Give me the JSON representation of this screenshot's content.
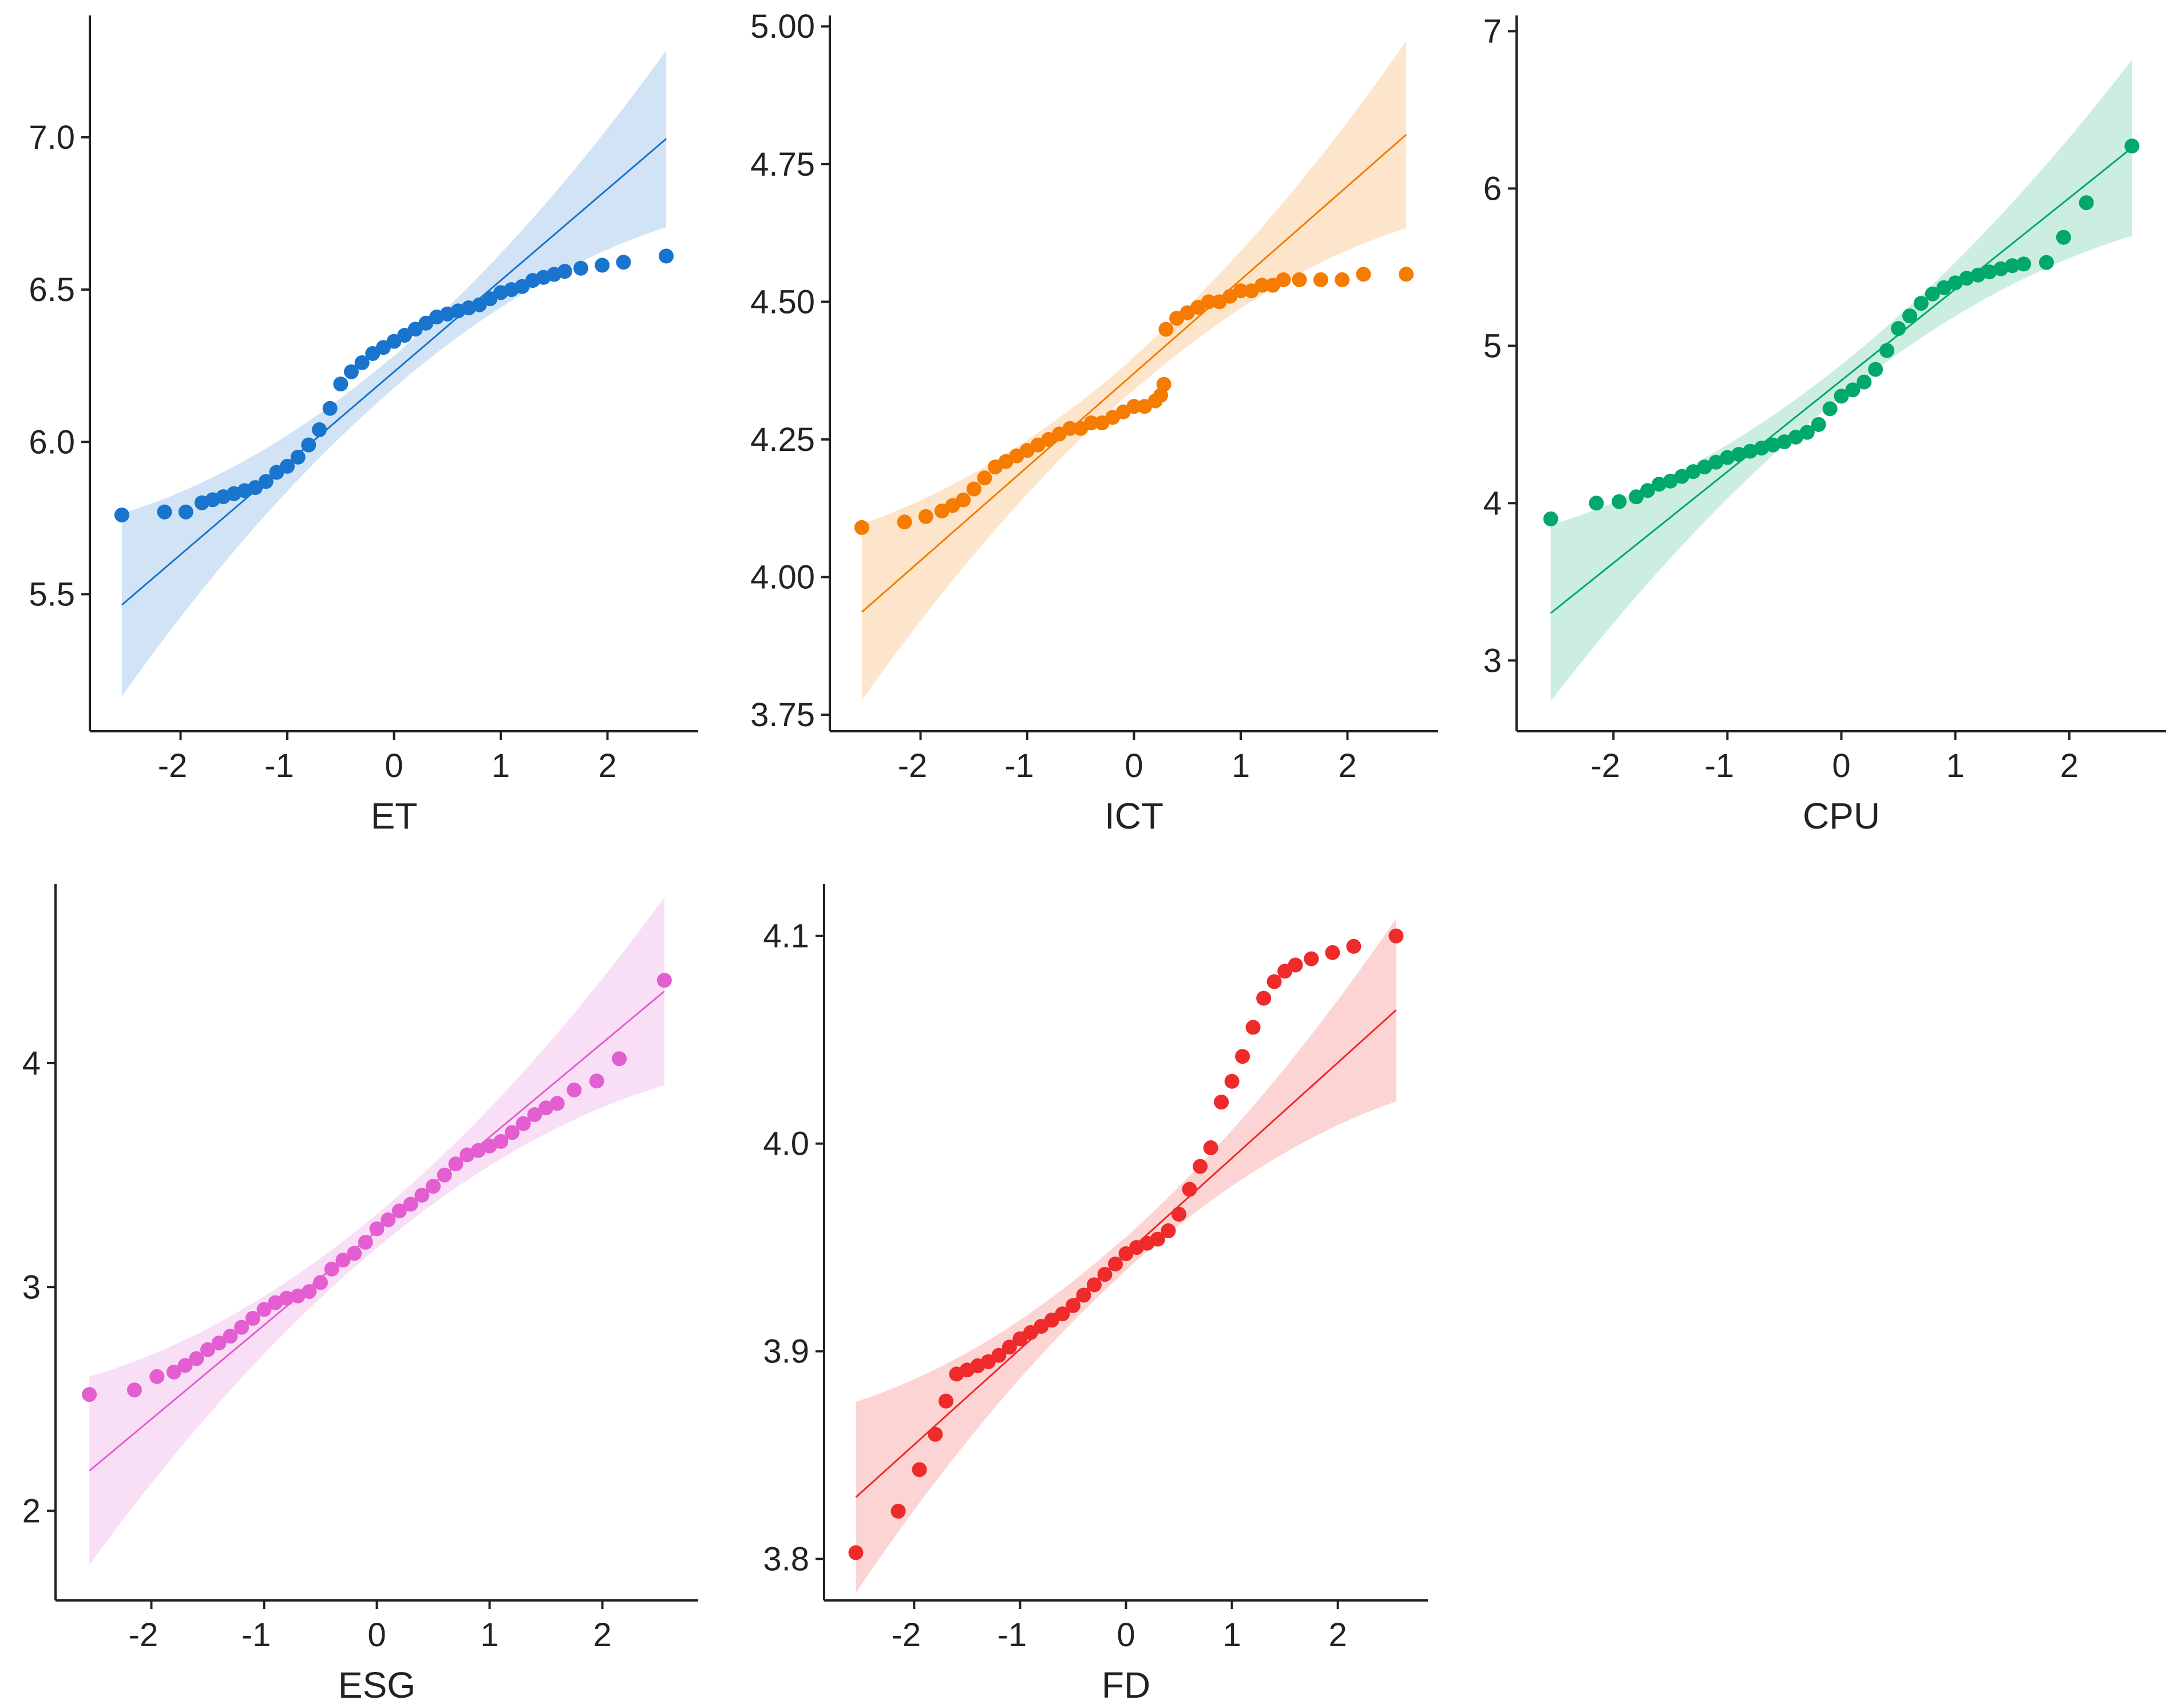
{
  "chart_data": [
    {
      "type": "scatter",
      "subtype": "qq-plot",
      "xlabel": "ET",
      "ylabel": "",
      "color": "#1874cd",
      "xlim": [
        -2.85,
        2.85
      ],
      "ylim": [
        5.05,
        7.4
      ],
      "xticks": [
        -2,
        -1,
        0,
        1,
        2
      ],
      "yticks": [
        5.5,
        6.0,
        6.5,
        7.0
      ],
      "ytick_labels": [
        "5.5",
        "6.0",
        "6.5",
        "7.0"
      ],
      "line": {
        "slope": 0.3,
        "intercept": 6.23
      },
      "band": {
        "half_low": 0.3,
        "half_high": 0.29
      },
      "points": [
        [
          -2.55,
          5.76
        ],
        [
          -2.15,
          5.77
        ],
        [
          -1.95,
          5.77
        ],
        [
          -1.8,
          5.8
        ],
        [
          -1.7,
          5.81
        ],
        [
          -1.6,
          5.82
        ],
        [
          -1.5,
          5.83
        ],
        [
          -1.4,
          5.84
        ],
        [
          -1.3,
          5.85
        ],
        [
          -1.2,
          5.87
        ],
        [
          -1.1,
          5.9
        ],
        [
          -1.0,
          5.92
        ],
        [
          -0.9,
          5.95
        ],
        [
          -0.8,
          5.99
        ],
        [
          -0.7,
          6.04
        ],
        [
          -0.6,
          6.11
        ],
        [
          -0.5,
          6.19
        ],
        [
          -0.4,
          6.23
        ],
        [
          -0.3,
          6.26
        ],
        [
          -0.2,
          6.29
        ],
        [
          -0.1,
          6.31
        ],
        [
          0.0,
          6.33
        ],
        [
          0.1,
          6.35
        ],
        [
          0.2,
          6.37
        ],
        [
          0.3,
          6.39
        ],
        [
          0.4,
          6.41
        ],
        [
          0.5,
          6.42
        ],
        [
          0.6,
          6.43
        ],
        [
          0.7,
          6.44
        ],
        [
          0.8,
          6.45
        ],
        [
          0.9,
          6.47
        ],
        [
          1.0,
          6.49
        ],
        [
          1.1,
          6.5
        ],
        [
          1.2,
          6.51
        ],
        [
          1.3,
          6.53
        ],
        [
          1.4,
          6.54
        ],
        [
          1.5,
          6.55
        ],
        [
          1.6,
          6.56
        ],
        [
          1.75,
          6.57
        ],
        [
          1.95,
          6.58
        ],
        [
          2.15,
          6.59
        ],
        [
          2.55,
          6.61
        ]
      ]
    },
    {
      "type": "scatter",
      "subtype": "qq-plot",
      "xlabel": "ICT",
      "ylabel": "",
      "color": "#f57c00",
      "xlim": [
        -2.85,
        2.85
      ],
      "ylim": [
        3.72,
        5.02
      ],
      "xticks": [
        -2,
        -1,
        0,
        1,
        2
      ],
      "yticks": [
        3.75,
        4.0,
        4.25,
        4.5,
        4.75,
        5.0
      ],
      "ytick_labels": [
        "3.75",
        "4.00",
        "4.25",
        "4.50",
        "4.75",
        "5.00"
      ],
      "line": {
        "slope": 0.17,
        "intercept": 4.37
      },
      "band": {
        "half_low": 0.16,
        "half_high": 0.17
      },
      "points": [
        [
          -2.55,
          4.09
        ],
        [
          -2.15,
          4.1
        ],
        [
          -1.95,
          4.11
        ],
        [
          -1.8,
          4.12
        ],
        [
          -1.7,
          4.13
        ],
        [
          -1.6,
          4.14
        ],
        [
          -1.5,
          4.16
        ],
        [
          -1.4,
          4.18
        ],
        [
          -1.3,
          4.2
        ],
        [
          -1.2,
          4.21
        ],
        [
          -1.1,
          4.22
        ],
        [
          -1.0,
          4.23
        ],
        [
          -0.9,
          4.24
        ],
        [
          -0.8,
          4.25
        ],
        [
          -0.7,
          4.26
        ],
        [
          -0.6,
          4.27
        ],
        [
          -0.5,
          4.27
        ],
        [
          -0.4,
          4.28
        ],
        [
          -0.3,
          4.28
        ],
        [
          -0.2,
          4.29
        ],
        [
          -0.1,
          4.3
        ],
        [
          0.0,
          4.31
        ],
        [
          0.1,
          4.31
        ],
        [
          0.2,
          4.32
        ],
        [
          0.25,
          4.33
        ],
        [
          0.28,
          4.35
        ],
        [
          0.3,
          4.45
        ],
        [
          0.4,
          4.47
        ],
        [
          0.5,
          4.48
        ],
        [
          0.6,
          4.49
        ],
        [
          0.7,
          4.5
        ],
        [
          0.8,
          4.5
        ],
        [
          0.9,
          4.51
        ],
        [
          1.0,
          4.52
        ],
        [
          1.1,
          4.52
        ],
        [
          1.2,
          4.53
        ],
        [
          1.3,
          4.53
        ],
        [
          1.4,
          4.54
        ],
        [
          1.55,
          4.54
        ],
        [
          1.75,
          4.54
        ],
        [
          1.95,
          4.54
        ],
        [
          2.15,
          4.55
        ],
        [
          2.55,
          4.55
        ]
      ]
    },
    {
      "type": "scatter",
      "subtype": "qq-plot",
      "xlabel": "CPU",
      "ylabel": "",
      "color": "#00a86b",
      "xlim": [
        -2.85,
        2.85
      ],
      "ylim": [
        2.55,
        7.1
      ],
      "xticks": [
        -2,
        -1,
        0,
        1,
        2
      ],
      "yticks": [
        3,
        4,
        5,
        6,
        7
      ],
      "ytick_labels": [
        "3",
        "4",
        "5",
        "6",
        "7"
      ],
      "line": {
        "slope": 0.58,
        "intercept": 4.78
      },
      "band": {
        "half_low": 0.56,
        "half_high": 0.56
      },
      "points": [
        [
          -2.55,
          3.9
        ],
        [
          -2.15,
          4.0
        ],
        [
          -1.95,
          4.01
        ],
        [
          -1.8,
          4.04
        ],
        [
          -1.7,
          4.08
        ],
        [
          -1.6,
          4.12
        ],
        [
          -1.5,
          4.14
        ],
        [
          -1.4,
          4.17
        ],
        [
          -1.3,
          4.2
        ],
        [
          -1.2,
          4.23
        ],
        [
          -1.1,
          4.26
        ],
        [
          -1.0,
          4.29
        ],
        [
          -0.9,
          4.31
        ],
        [
          -0.8,
          4.33
        ],
        [
          -0.7,
          4.35
        ],
        [
          -0.6,
          4.37
        ],
        [
          -0.5,
          4.39
        ],
        [
          -0.4,
          4.42
        ],
        [
          -0.3,
          4.45
        ],
        [
          -0.2,
          4.5
        ],
        [
          -0.1,
          4.6
        ],
        [
          0.0,
          4.68
        ],
        [
          0.1,
          4.72
        ],
        [
          0.2,
          4.77
        ],
        [
          0.3,
          4.85
        ],
        [
          0.4,
          4.97
        ],
        [
          0.5,
          5.11
        ],
        [
          0.6,
          5.19
        ],
        [
          0.7,
          5.27
        ],
        [
          0.8,
          5.33
        ],
        [
          0.9,
          5.37
        ],
        [
          1.0,
          5.4
        ],
        [
          1.1,
          5.43
        ],
        [
          1.2,
          5.45
        ],
        [
          1.3,
          5.47
        ],
        [
          1.4,
          5.49
        ],
        [
          1.5,
          5.51
        ],
        [
          1.6,
          5.52
        ],
        [
          1.8,
          5.53
        ],
        [
          1.95,
          5.69
        ],
        [
          2.15,
          5.91
        ],
        [
          2.55,
          6.27
        ]
      ]
    },
    {
      "type": "scatter",
      "subtype": "qq-plot",
      "xlabel": "ESG",
      "ylabel": "",
      "color": "#e35ed1",
      "xlim": [
        -2.85,
        2.85
      ],
      "ylim": [
        1.6,
        4.8
      ],
      "xticks": [
        -2,
        -1,
        0,
        1,
        2
      ],
      "yticks": [
        2,
        3,
        4
      ],
      "ytick_labels": [
        "2",
        "3",
        "4"
      ],
      "line": {
        "slope": 0.42,
        "intercept": 3.25
      },
      "band": {
        "half_low": 0.42,
        "half_high": 0.42
      },
      "points": [
        [
          -2.55,
          2.52
        ],
        [
          -2.15,
          2.54
        ],
        [
          -1.95,
          2.6
        ],
        [
          -1.8,
          2.62
        ],
        [
          -1.7,
          2.65
        ],
        [
          -1.6,
          2.68
        ],
        [
          -1.5,
          2.72
        ],
        [
          -1.4,
          2.75
        ],
        [
          -1.3,
          2.78
        ],
        [
          -1.2,
          2.82
        ],
        [
          -1.1,
          2.86
        ],
        [
          -1.0,
          2.9
        ],
        [
          -0.9,
          2.93
        ],
        [
          -0.8,
          2.95
        ],
        [
          -0.7,
          2.96
        ],
        [
          -0.6,
          2.98
        ],
        [
          -0.5,
          3.02
        ],
        [
          -0.4,
          3.08
        ],
        [
          -0.3,
          3.12
        ],
        [
          -0.2,
          3.15
        ],
        [
          -0.1,
          3.2
        ],
        [
          0.0,
          3.26
        ],
        [
          0.1,
          3.3
        ],
        [
          0.2,
          3.34
        ],
        [
          0.3,
          3.37
        ],
        [
          0.4,
          3.41
        ],
        [
          0.5,
          3.45
        ],
        [
          0.6,
          3.5
        ],
        [
          0.7,
          3.55
        ],
        [
          0.8,
          3.59
        ],
        [
          0.9,
          3.61
        ],
        [
          1.0,
          3.63
        ],
        [
          1.1,
          3.65
        ],
        [
          1.2,
          3.69
        ],
        [
          1.3,
          3.73
        ],
        [
          1.4,
          3.77
        ],
        [
          1.5,
          3.8
        ],
        [
          1.6,
          3.82
        ],
        [
          1.75,
          3.88
        ],
        [
          1.95,
          3.92
        ],
        [
          2.15,
          4.02
        ],
        [
          2.55,
          4.37
        ]
      ]
    },
    {
      "type": "scatter",
      "subtype": "qq-plot",
      "xlabel": "FD",
      "ylabel": "",
      "color": "#ee2a2a",
      "xlim": [
        -2.85,
        2.85
      ],
      "ylim": [
        3.78,
        4.125
      ],
      "xticks": [
        -2,
        -1,
        0,
        1,
        2
      ],
      "yticks": [
        3.8,
        3.9,
        4.0,
        4.1
      ],
      "ytick_labels": [
        "3.8",
        "3.9",
        "4.0",
        "4.1"
      ],
      "line": {
        "slope": 0.046,
        "intercept": 3.947
      },
      "band": {
        "half_low": 0.046,
        "half_high": 0.044
      },
      "points": [
        [
          -2.55,
          3.803
        ],
        [
          -2.15,
          3.823
        ],
        [
          -1.95,
          3.843
        ],
        [
          -1.8,
          3.86
        ],
        [
          -1.7,
          3.876
        ],
        [
          -1.6,
          3.889
        ],
        [
          -1.5,
          3.891
        ],
        [
          -1.4,
          3.893
        ],
        [
          -1.3,
          3.895
        ],
        [
          -1.2,
          3.898
        ],
        [
          -1.1,
          3.902
        ],
        [
          -1.0,
          3.906
        ],
        [
          -0.9,
          3.909
        ],
        [
          -0.8,
          3.912
        ],
        [
          -0.7,
          3.915
        ],
        [
          -0.6,
          3.918
        ],
        [
          -0.5,
          3.922
        ],
        [
          -0.4,
          3.927
        ],
        [
          -0.3,
          3.932
        ],
        [
          -0.2,
          3.937
        ],
        [
          -0.1,
          3.942
        ],
        [
          0.0,
          3.947
        ],
        [
          0.1,
          3.95
        ],
        [
          0.2,
          3.952
        ],
        [
          0.3,
          3.954
        ],
        [
          0.4,
          3.958
        ],
        [
          0.5,
          3.966
        ],
        [
          0.6,
          3.978
        ],
        [
          0.7,
          3.989
        ],
        [
          0.8,
          3.998
        ],
        [
          0.9,
          4.02
        ],
        [
          1.0,
          4.03
        ],
        [
          1.1,
          4.042
        ],
        [
          1.2,
          4.056
        ],
        [
          1.3,
          4.07
        ],
        [
          1.4,
          4.078
        ],
        [
          1.5,
          4.083
        ],
        [
          1.6,
          4.086
        ],
        [
          1.75,
          4.089
        ],
        [
          1.95,
          4.092
        ],
        [
          2.15,
          4.095
        ],
        [
          2.55,
          4.1
        ]
      ]
    }
  ]
}
